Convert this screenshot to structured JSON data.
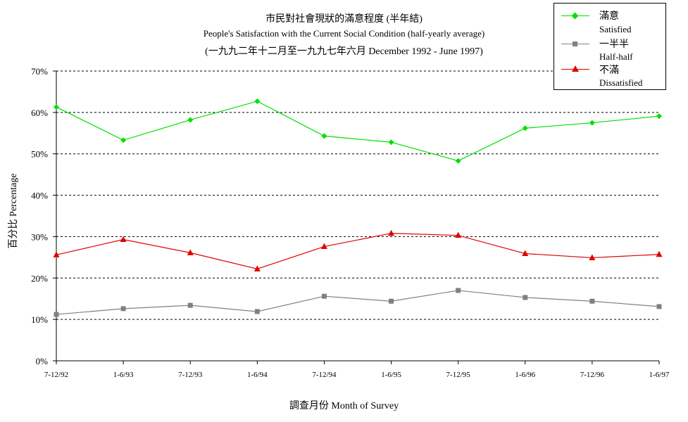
{
  "chart_data": {
    "type": "line",
    "title": "市民對社會現狀的滿意程度 (半年結)",
    "subtitle": "People's Satisfaction with the Current Social Condition (half-yearly average)",
    "subtitle2": "(一九九二年十二月至一九九七年六月 December 1992 - June 1997)",
    "xlabel": "調查月份 Month of Survey",
    "ylabel": "百分比 Percentage",
    "ylim": [
      0,
      70
    ],
    "yticks": [
      "0%",
      "10%",
      "20%",
      "30%",
      "40%",
      "50%",
      "60%",
      "70%"
    ],
    "grid": true,
    "legend_position": "top-right",
    "categories": [
      "7-12/92",
      "1-6/93",
      "7-12/93",
      "1-6/94",
      "7-12/94",
      "1-6/95",
      "7-12/95",
      "1-6/96",
      "7-12/96",
      "1-6/97"
    ],
    "series": [
      {
        "name": "滿意",
        "name_en": "Satisfied",
        "color": "#00e000",
        "marker": "diamond",
        "values": [
          61.3,
          53.3,
          58.2,
          62.7,
          54.3,
          52.8,
          48.3,
          56.2,
          57.5,
          59.1
        ]
      },
      {
        "name": "一半半",
        "name_en": "Half-half",
        "color": "#808080",
        "marker": "square",
        "values": [
          11.2,
          12.6,
          13.4,
          11.9,
          15.6,
          14.4,
          17.0,
          15.3,
          14.4,
          13.1
        ]
      },
      {
        "name": "不滿",
        "name_en": "Dissatisfied",
        "color": "#e00000",
        "marker": "triangle",
        "values": [
          25.6,
          29.3,
          26.1,
          22.2,
          27.6,
          30.8,
          30.3,
          25.9,
          24.9,
          25.7
        ]
      }
    ]
  }
}
